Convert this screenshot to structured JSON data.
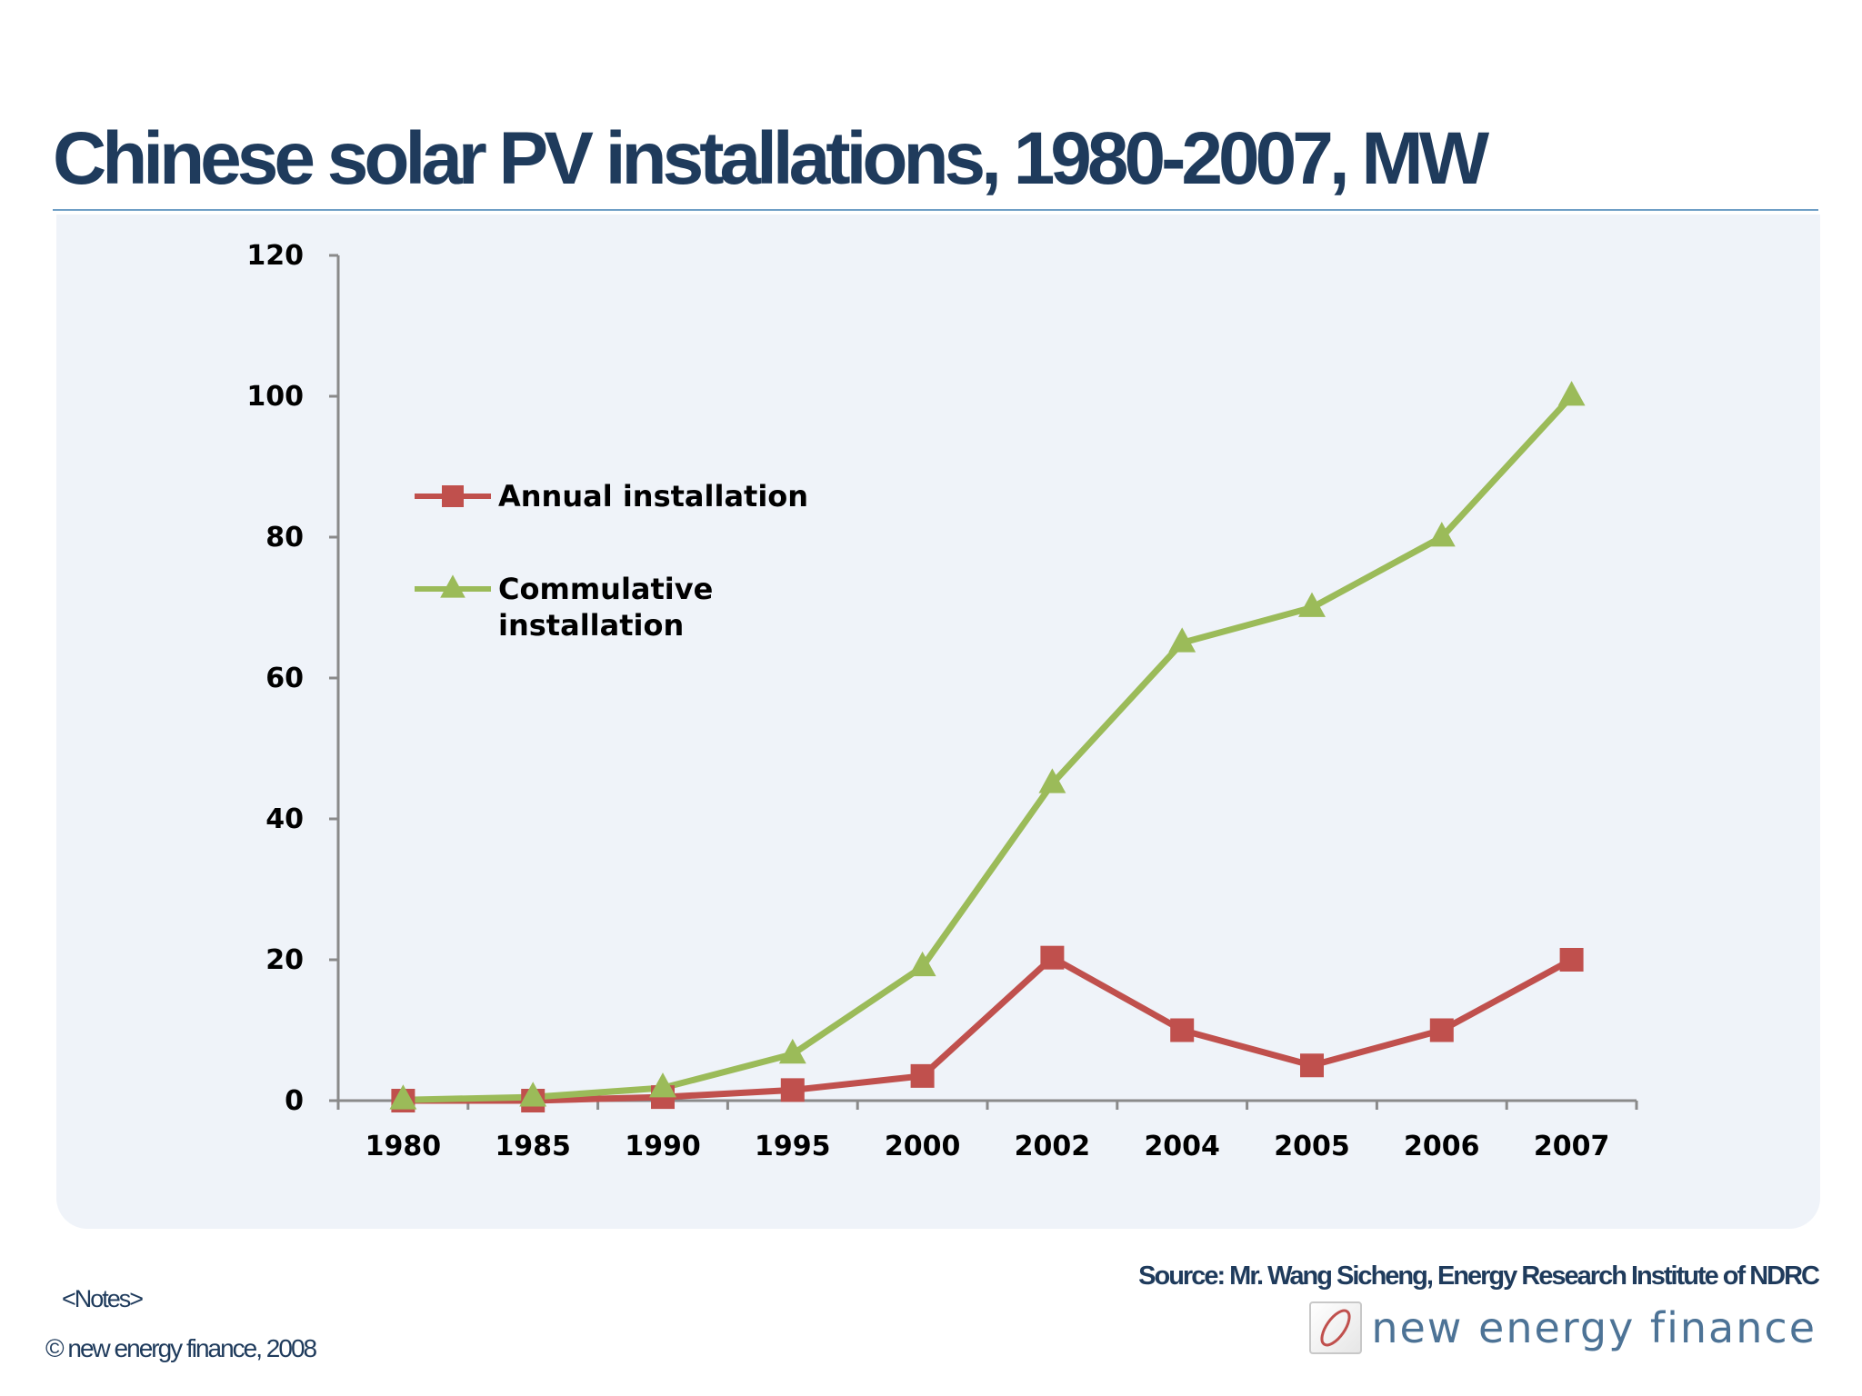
{
  "slide": {
    "title": "Chinese solar PV installations, 1980-2007, MW",
    "notes": "<Notes>",
    "copyright": "© new energy finance, 2008",
    "source": "Source:  Mr. Wang Sicheng, Energy Research Institute of NDRC",
    "logo_text": "new energy finance"
  },
  "chart_data": {
    "type": "line",
    "categories": [
      "1980",
      "1985",
      "1990",
      "1995",
      "2000",
      "2002",
      "2004",
      "2005",
      "2006",
      "2007"
    ],
    "ylim": [
      0,
      120
    ],
    "yticks": [
      0,
      20,
      40,
      60,
      80,
      100,
      120
    ],
    "grid": false,
    "legend_position": "upper-left",
    "series": [
      {
        "name": "Annual installation",
        "color": "#c0504d",
        "marker": "square",
        "values": [
          0,
          0,
          0.5,
          1.5,
          3.5,
          20.3,
          10,
          5,
          10,
          20
        ]
      },
      {
        "name": "Commulative installation",
        "color": "#9bbb59",
        "marker": "triangle",
        "values": [
          0.1,
          0.5,
          1.8,
          6.6,
          19,
          45,
          65,
          70,
          80,
          100
        ]
      }
    ]
  }
}
